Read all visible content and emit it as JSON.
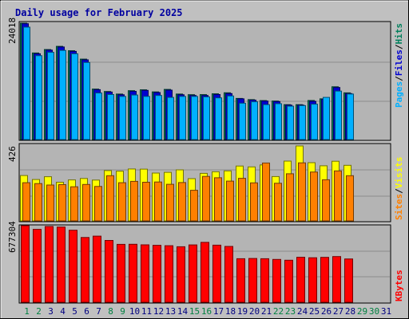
{
  "chart_data": [
    {
      "type": "bar",
      "title": "Daily usage for February 2025",
      "ymax_label": "24018",
      "ylabel_parts": [
        "Hits",
        "Files",
        "Pages"
      ],
      "categories": [
        "1",
        "2",
        "3",
        "4",
        "5",
        "6",
        "7",
        "8",
        "9",
        "10",
        "11",
        "12",
        "13",
        "14",
        "15",
        "16",
        "17",
        "18",
        "19",
        "20",
        "21",
        "22",
        "23",
        "24",
        "25",
        "26",
        "27",
        "28"
      ],
      "series": [
        {
          "name": "Hits",
          "color": "#00805c",
          "values": [
            24018,
            17866,
            18566,
            19237,
            18322,
            16597,
            10406,
            9923,
            9393,
            10082,
            10271,
            9839,
            10345,
            9395,
            9257,
            9279,
            9448,
            9659,
            8493,
            8247,
            8051,
            7941,
            7198,
            7198,
            8055,
            8404,
            10897,
            9634
          ]
        },
        {
          "name": "Files",
          "color": "#0000d0",
          "values": [
            23900,
            17700,
            18450,
            19100,
            18200,
            16450,
            10300,
            9800,
            9250,
            9950,
            10150,
            9700,
            10200,
            9250,
            9100,
            9100,
            9300,
            9500,
            8400,
            8150,
            7950,
            7850,
            7100,
            7100,
            7900,
            8300,
            10750,
            9500
          ]
        },
        {
          "name": "Pages",
          "color": "#00b0ff",
          "values": [
            23200,
            17300,
            18000,
            18400,
            17700,
            15900,
            9600,
            9300,
            8900,
            9200,
            8900,
            9100,
            8700,
            8900,
            8900,
            8800,
            8600,
            9000,
            7500,
            7800,
            7200,
            7400,
            6900,
            7000,
            7300,
            8700,
            10000,
            9400
          ]
        }
      ]
    },
    {
      "type": "bar",
      "ymax_label": "426",
      "ylabel_parts": [
        "Visits",
        "Sites"
      ],
      "series": [
        {
          "name": "Visits",
          "color": "#ffff00",
          "values": [
            258,
            235,
            251,
            220,
            233,
            241,
            232,
            286,
            283,
            295,
            294,
            272,
            276,
            290,
            240,
            270,
            279,
            284,
            312,
            307,
            318,
            252,
            340,
            426,
            331,
            313,
            339,
            316
          ]
        },
        {
          "name": "Sites",
          "color": "#ff8000",
          "values": [
            217,
            212,
            204,
            206,
            194,
            207,
            196,
            257,
            217,
            225,
            220,
            221,
            208,
            218,
            174,
            253,
            245,
            226,
            242,
            216,
            329,
            214,
            268,
            330,
            278,
            234,
            284,
            257
          ]
        }
      ]
    },
    {
      "type": "bar",
      "ymax_label": "677304",
      "ylabel_parts": [
        "KBytes"
      ],
      "series": [
        {
          "name": "KBytes",
          "color": "#ff0000",
          "values": [
            677304,
            645200,
            670000,
            665000,
            637000,
            573000,
            585000,
            547000,
            512000,
            513000,
            508000,
            504000,
            500000,
            491000,
            507000,
            530000,
            505000,
            494000,
            385000,
            387000,
            385000,
            379000,
            372000,
            398000,
            394000,
            397000,
            404000,
            383000
          ]
        }
      ]
    }
  ],
  "x_labels": [
    {
      "text": "1",
      "weekend": true
    },
    {
      "text": "2",
      "weekend": true
    },
    {
      "text": "3",
      "weekend": false
    },
    {
      "text": "4",
      "weekend": false
    },
    {
      "text": "5",
      "weekend": false
    },
    {
      "text": "6",
      "weekend": false
    },
    {
      "text": "7",
      "weekend": false
    },
    {
      "text": "8",
      "weekend": true
    },
    {
      "text": "9",
      "weekend": true
    },
    {
      "text": "10",
      "weekend": false
    },
    {
      "text": "11",
      "weekend": false
    },
    {
      "text": "12",
      "weekend": false
    },
    {
      "text": "13",
      "weekend": false
    },
    {
      "text": "14",
      "weekend": false
    },
    {
      "text": "15",
      "weekend": true
    },
    {
      "text": "16",
      "weekend": true
    },
    {
      "text": "17",
      "weekend": false
    },
    {
      "text": "18",
      "weekend": false
    },
    {
      "text": "19",
      "weekend": false
    },
    {
      "text": "20",
      "weekend": false
    },
    {
      "text": "21",
      "weekend": false
    },
    {
      "text": "22",
      "weekend": true
    },
    {
      "text": "23",
      "weekend": true
    },
    {
      "text": "24",
      "weekend": false
    },
    {
      "text": "25",
      "weekend": false
    },
    {
      "text": "26",
      "weekend": false
    },
    {
      "text": "27",
      "weekend": false
    },
    {
      "text": "28",
      "weekend": false
    },
    {
      "text": "29",
      "weekend": true
    },
    {
      "text": "30",
      "weekend": true
    },
    {
      "text": "31",
      "weekend": false
    }
  ],
  "colors": {
    "background": "#c0c0c0",
    "panel": "#b4b4b4",
    "title": "#0000a0",
    "weekday": "#000080",
    "weekend": "#008040"
  }
}
